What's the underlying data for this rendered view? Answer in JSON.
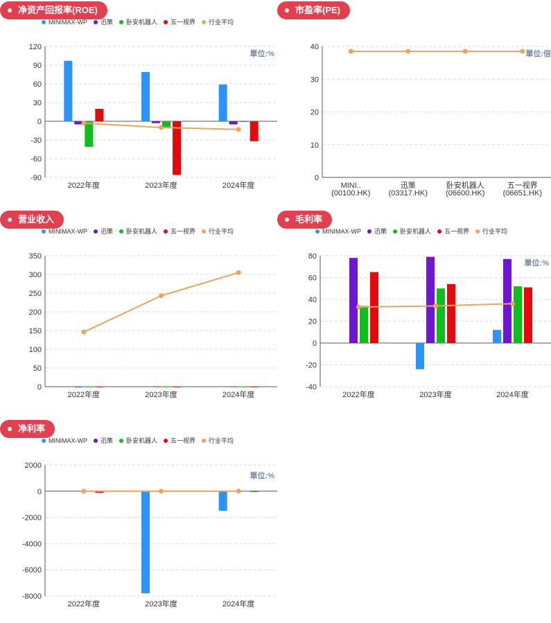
{
  "legend_colors": [
    "#2b93fc",
    "#7015d6",
    "#0dbf1a",
    "#e8070a",
    "#eaa45c"
  ],
  "charts": [
    {
      "id": "roe",
      "badge": "净资产回报率(ROE)",
      "unit": "單位:%",
      "chart_data": {
        "type": "bar",
        "categories": [
          "2022年度",
          "2023年度",
          "2024年度"
        ],
        "series": [
          {
            "name": "MINIMAX-WP",
            "values": [
              97,
              79,
              59
            ]
          },
          {
            "name": "迅策",
            "values": [
              -5,
              -3,
              -5
            ]
          },
          {
            "name": "卧安机器人",
            "values": [
              -41,
              -11,
              -1
            ]
          },
          {
            "name": "五一视界",
            "values": [
              20,
              -86,
              -32
            ]
          }
        ],
        "line": {
          "name": "行业平均",
          "values": [
            -3,
            -10,
            -13
          ]
        },
        "yticks": [
          120,
          90,
          60,
          30,
          0,
          -30,
          -60,
          -90
        ],
        "ylim": [
          -90,
          120
        ]
      }
    },
    {
      "id": "pe",
      "badge": "市盈率(PE)",
      "unit": "單位:倍",
      "chart_data": {
        "type": "line",
        "categories": [
          [
            "MINI..",
            "(00100.HK)"
          ],
          [
            "迅策",
            "(03317.HK)"
          ],
          [
            "卧安机器人",
            "(06600.HK)"
          ],
          [
            "五一视界",
            "(06651.HK)"
          ]
        ],
        "line": {
          "name": "行业平均",
          "values": [
            38.5,
            38.5,
            38.5,
            38.5
          ]
        },
        "yticks": [
          40,
          30,
          20,
          10,
          0
        ],
        "ylim": [
          0,
          40
        ]
      }
    },
    {
      "id": "revenue",
      "badge": "营业收入",
      "chart_data": {
        "type": "bar",
        "categories": [
          "2022年度",
          "2023年度",
          "2024年度"
        ],
        "series": [
          {
            "name": "MINIMAX-WP",
            "values": [
              0,
              0,
              0
            ]
          },
          {
            "name": "迅策",
            "values": [
              0.5,
              1,
              1
            ]
          },
          {
            "name": "卧安机器人",
            "values": [
              0.5,
              0.5,
              0.5
            ]
          },
          {
            "name": "五一视界",
            "values": [
              0.5,
              0.5,
              0.5
            ]
          }
        ],
        "line": {
          "name": "行业平均",
          "values": [
            146,
            243,
            305
          ]
        },
        "yticks": [
          350,
          300,
          250,
          200,
          150,
          100,
          50,
          0
        ],
        "ylim": [
          0,
          350
        ]
      }
    },
    {
      "id": "gross",
      "badge": "毛利率",
      "unit": "單位:%",
      "chart_data": {
        "type": "bar",
        "categories": [
          "2022年度",
          "2023年度",
          "2024年度"
        ],
        "series": [
          {
            "name": "MINIMAX-WP",
            "values": [
              0,
              -24,
              12
            ]
          },
          {
            "name": "迅策",
            "values": [
              78,
              79,
              77
            ]
          },
          {
            "name": "卧安机器人",
            "values": [
              34,
              50,
              52
            ]
          },
          {
            "name": "五一视界",
            "values": [
              65,
              54,
              51
            ]
          }
        ],
        "line": {
          "name": "行业平均",
          "values": [
            33,
            34,
            36
          ]
        },
        "yticks": [
          80,
          60,
          40,
          20,
          0,
          -20,
          -40
        ],
        "ylim": [
          -40,
          80
        ]
      }
    },
    {
      "id": "net",
      "badge": "净利率",
      "unit": "單位:%",
      "chart_data": {
        "type": "bar",
        "categories": [
          "2022年度",
          "2023年度",
          "2024年度"
        ],
        "series": [
          {
            "name": "MINIMAX-WP",
            "values": [
              0,
              -7800,
              -1500
            ]
          },
          {
            "name": "迅策",
            "values": [
              0,
              0,
              0
            ]
          },
          {
            "name": "卧安机器人",
            "values": [
              0,
              0,
              0
            ]
          },
          {
            "name": "五一视界",
            "values": [
              -120,
              0,
              -30
            ]
          }
        ],
        "line": {
          "name": "行业平均",
          "values": [
            0,
            0,
            0
          ]
        },
        "yticks": [
          2000,
          0,
          -2000,
          -4000,
          -6000,
          -8000
        ],
        "ylim": [
          -8000,
          2000
        ]
      }
    }
  ]
}
